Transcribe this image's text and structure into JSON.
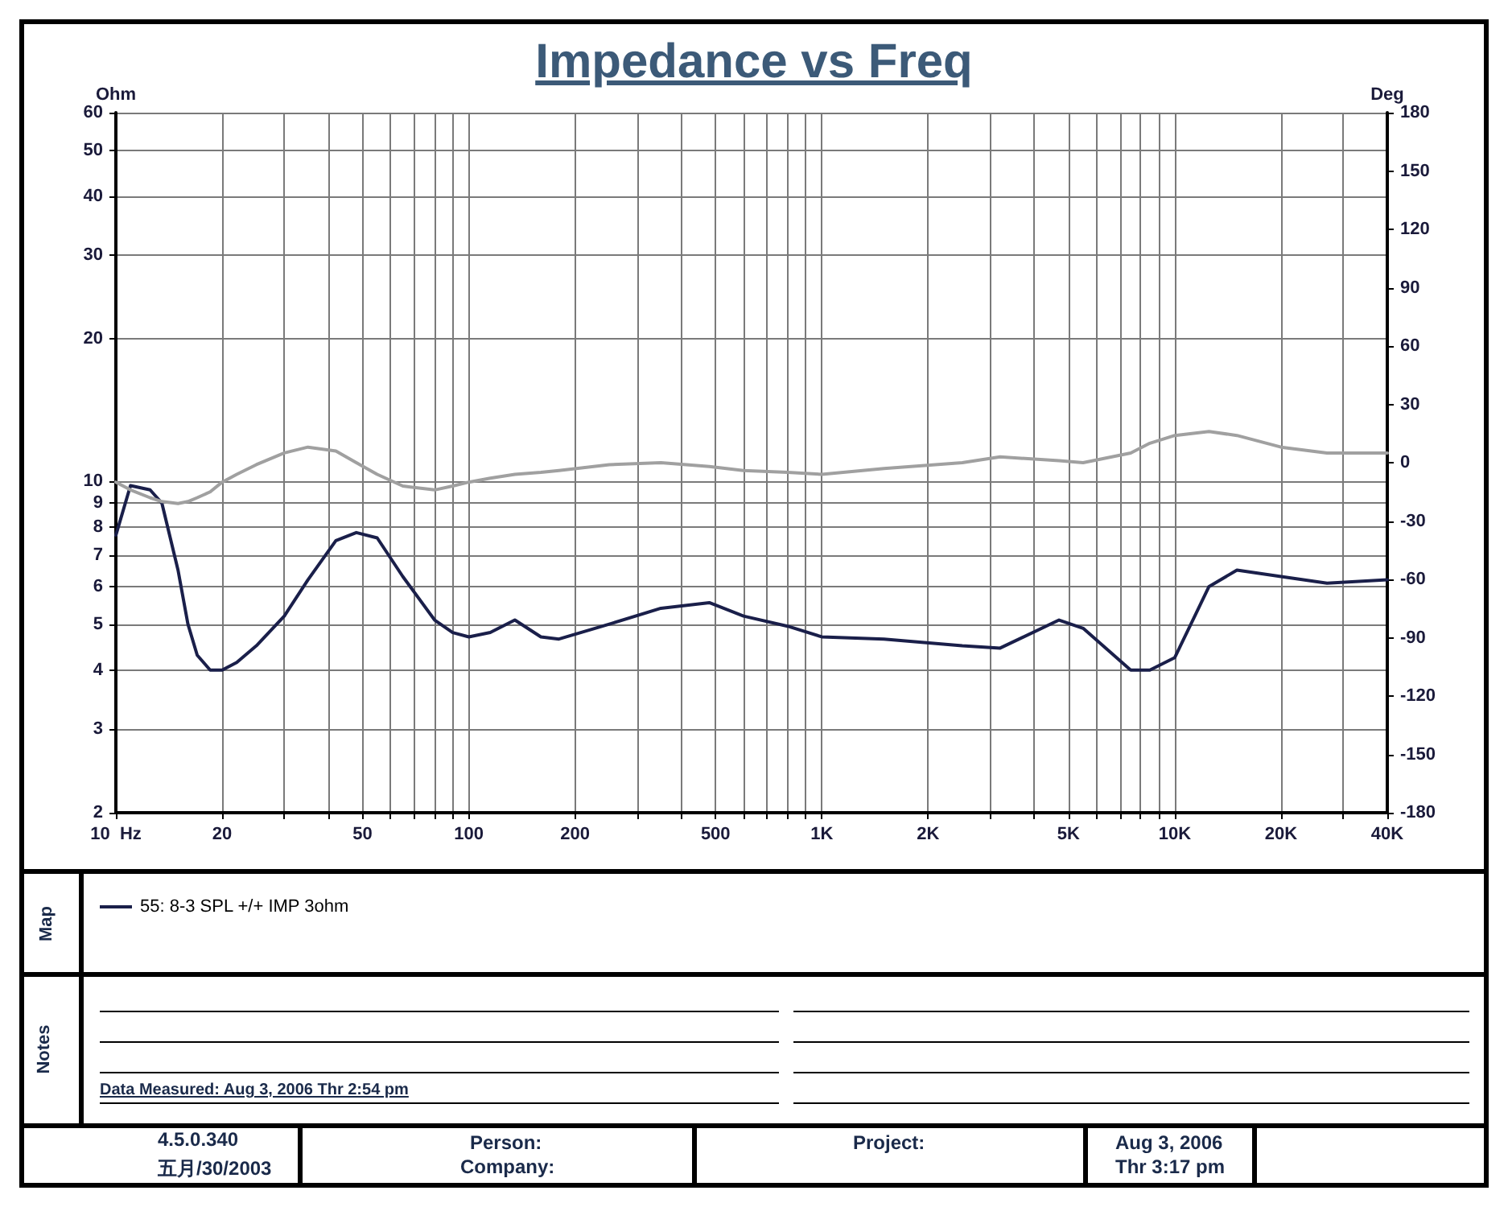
{
  "chart_data": {
    "type": "line",
    "title": "Impedance vs Freq",
    "ylabel": "Ohm",
    "y2label": "Deg",
    "x": [
      10,
      11,
      12.5,
      13.5,
      15,
      16,
      17,
      18.5,
      20,
      22,
      25,
      30,
      35,
      42,
      48,
      55,
      65,
      80,
      90,
      100,
      115,
      135,
      160,
      180,
      250,
      350,
      480,
      600,
      800,
      1000,
      1500,
      2500,
      3200,
      4700,
      5500,
      7500,
      8500,
      10000,
      12500,
      15000,
      20000,
      27000,
      40000
    ],
    "series": [
      {
        "name": "55: 8-3 SPL +/+ IMP 3ohm",
        "color": "#1a1f4a",
        "values": [
          7.7,
          9.8,
          9.6,
          9.0,
          6.5,
          5.0,
          4.3,
          4.0,
          4.0,
          4.15,
          4.5,
          5.2,
          6.2,
          7.5,
          7.8,
          7.6,
          6.3,
          5.1,
          4.8,
          4.7,
          4.8,
          5.1,
          4.7,
          4.65,
          5.0,
          5.4,
          5.55,
          5.2,
          4.95,
          4.7,
          4.65,
          4.5,
          4.45,
          5.1,
          4.9,
          4.0,
          4.0,
          4.25,
          6.0,
          6.5,
          6.3,
          6.1,
          6.2
        ]
      },
      {
        "color": "#a0a0a0",
        "axis": "y2",
        "values": [
          -10,
          -14,
          -18,
          -20,
          -21,
          -20,
          -18,
          -15,
          -10,
          -6,
          -1,
          5,
          8,
          6,
          0,
          -6,
          -12,
          -14,
          -12,
          -10,
          -8,
          -6,
          -5,
          -4,
          -1,
          0,
          -2,
          -4,
          -5,
          -6,
          -3,
          0,
          3,
          1,
          0,
          5,
          10,
          14,
          16,
          14,
          8,
          5,
          5
        ]
      }
    ],
    "xlim": [
      10,
      40000
    ],
    "xticks": [
      {
        "value": 10,
        "label": "10  Hz"
      },
      20,
      {
        "value": 30,
        "label": null
      },
      {
        "value": 40,
        "label": null
      },
      50,
      {
        "value": 60,
        "label": null
      },
      {
        "value": 70,
        "label": null
      },
      {
        "value": 80,
        "label": null
      },
      {
        "value": 90,
        "label": null
      },
      100,
      200,
      {
        "value": 300,
        "label": null
      },
      {
        "value": 400,
        "label": null
      },
      500,
      {
        "value": 600,
        "label": null
      },
      {
        "value": 700,
        "label": null
      },
      {
        "value": 800,
        "label": null
      },
      {
        "value": 900,
        "label": null
      },
      {
        "value": 1000,
        "label": "1K"
      },
      {
        "value": 2000,
        "label": "2K"
      },
      {
        "value": 3000,
        "label": null
      },
      {
        "value": 4000,
        "label": null
      },
      {
        "value": 5000,
        "label": "5K"
      },
      {
        "value": 6000,
        "label": null
      },
      {
        "value": 7000,
        "label": null
      },
      {
        "value": 8000,
        "label": null
      },
      {
        "value": 9000,
        "label": null
      },
      {
        "value": 10000,
        "label": "10K"
      },
      {
        "value": 20000,
        "label": "20K"
      },
      {
        "value": 30000,
        "label": null
      },
      {
        "value": 40000,
        "label": "40K"
      }
    ],
    "ylim": [
      2,
      60
    ],
    "yticks": [
      2,
      3,
      4,
      5,
      6,
      7,
      8,
      9,
      10,
      20,
      30,
      40,
      50,
      60
    ],
    "y2lim": [
      -180,
      180
    ],
    "y2ticks": [
      -180,
      -150,
      -120,
      -90,
      -60,
      -30,
      0,
      30,
      60,
      90,
      120,
      150,
      180
    ],
    "log": "xy",
    "grid": true,
    "legend": "bottom",
    "marker": "none",
    "line_style": "solid",
    "annotations": [
      "Map",
      "Notes",
      "Data Measured: Aug 3, 2006  Thr 2:54 pm",
      "4.5.0.340",
      "五月/30/2003",
      "Person:",
      "Company:",
      "Project:",
      "Aug 3, 2006",
      "Thr 3:17 pm"
    ]
  }
}
